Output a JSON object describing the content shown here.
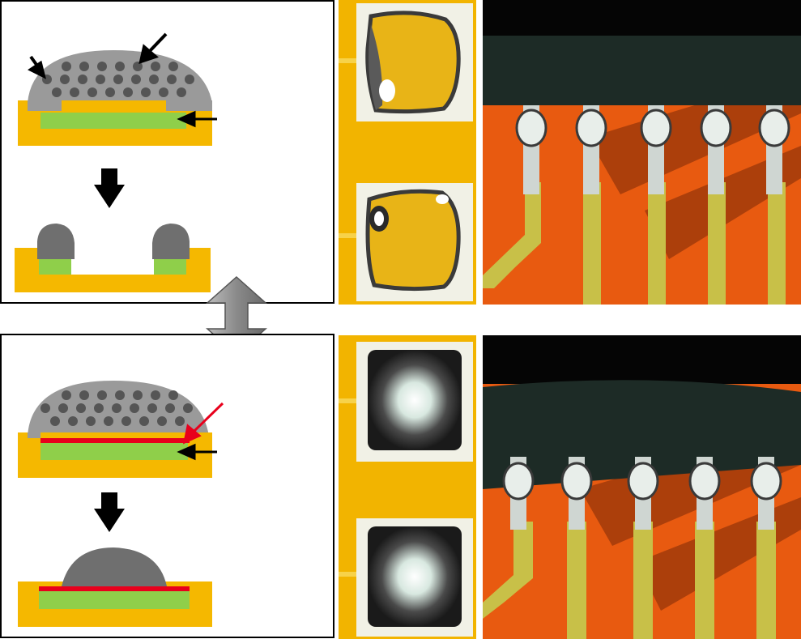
{
  "colors": {
    "substrate": "#f5b800",
    "pad": "#8fcf4a",
    "paste": "#9a9a9a",
    "particle": "#5c5c5c",
    "solder": "#7a7a7a",
    "barrier": "#e8001c",
    "arrow": "#000000",
    "double_arrow": "#8c8c8c",
    "board": "#e85a10",
    "trace": "#c8c048",
    "chip": "#1d2b26"
  },
  "icons": {
    "process_arrow": "down-arrow-icon",
    "comparison_arrow": "double-vertical-arrow-icon"
  },
  "figures": [
    {
      "name": "top-schematic",
      "description_visible": false
    },
    {
      "name": "bottom-schematic",
      "description_visible": false
    }
  ]
}
